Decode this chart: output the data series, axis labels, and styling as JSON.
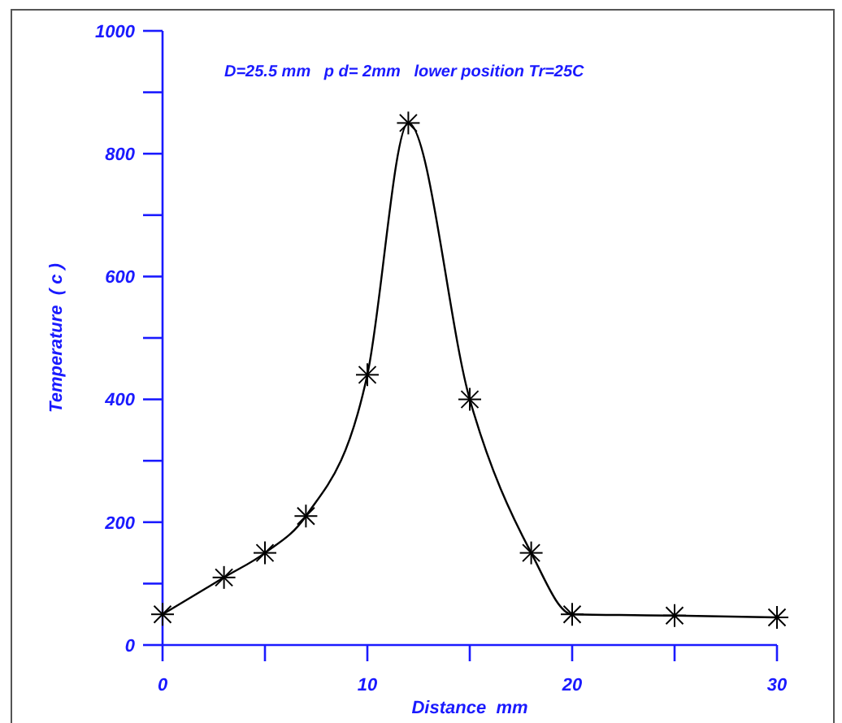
{
  "chart_data": {
    "type": "line",
    "title": "D=25.5 mm   p d= 2mm   lower position Tr=25C",
    "xlabel": "Distance  mm",
    "ylabel": "Temperature  ( c )",
    "x": [
      0,
      3,
      5,
      7,
      10,
      12,
      15,
      18,
      20,
      25,
      30
    ],
    "series": [
      {
        "color": "#000000",
        "values": [
          50,
          110,
          150,
          210,
          440,
          850,
          400,
          150,
          50,
          48,
          45
        ]
      }
    ],
    "xlim": [
      0,
      30
    ],
    "xticks": [
      0,
      {
        "value": 5,
        "label": null
      },
      10,
      {
        "value": 15,
        "label": null
      },
      20,
      {
        "value": 25,
        "label": null
      },
      30
    ],
    "ylim": [
      0,
      1000
    ],
    "yticks": [
      0,
      {
        "value": 100,
        "label": null
      },
      200,
      {
        "value": 300,
        "label": null
      },
      400,
      {
        "value": 500,
        "label": null
      },
      600,
      {
        "value": 700,
        "label": null
      },
      800,
      {
        "value": 900,
        "label": null
      },
      1000
    ],
    "marker": "cross",
    "line_style": "solid"
  }
}
